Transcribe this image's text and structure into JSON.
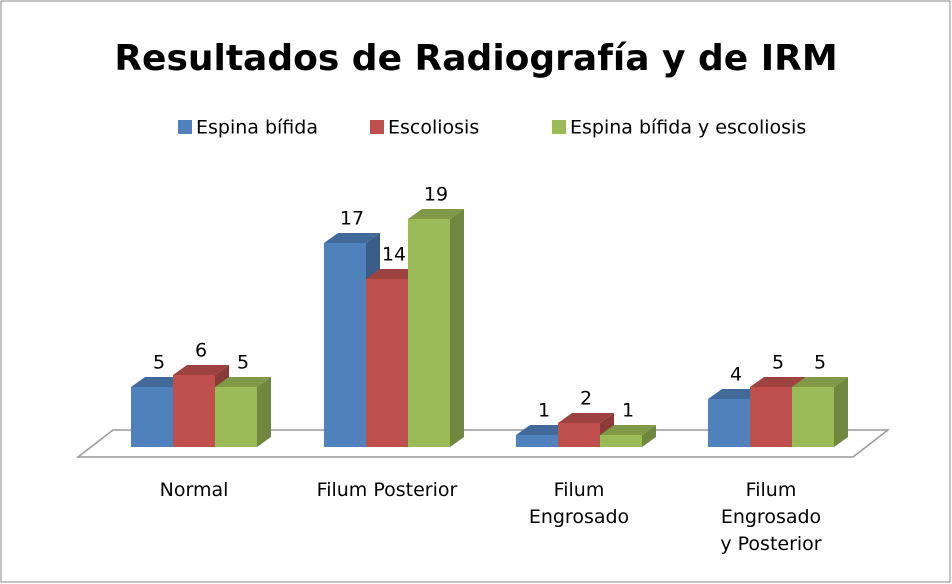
{
  "chart_data": {
    "type": "bar3d",
    "title": "Resultados de Radiografía y de IRM",
    "categories": [
      "Normal",
      "Filum Posterior",
      "Filum Engrosado",
      "Filum Engrosado y Posterior"
    ],
    "series": [
      {
        "name": "Espina bífida",
        "color": "#4f81bd",
        "values": [
          5,
          17,
          1,
          4
        ]
      },
      {
        "name": "Escoliosis",
        "color": "#c0504d",
        "values": [
          6,
          14,
          2,
          5
        ]
      },
      {
        "name": "Espina bífida y escoliosis",
        "color": "#9bbb59",
        "values": [
          5,
          19,
          1,
          5
        ]
      }
    ],
    "legend": "top"
  }
}
